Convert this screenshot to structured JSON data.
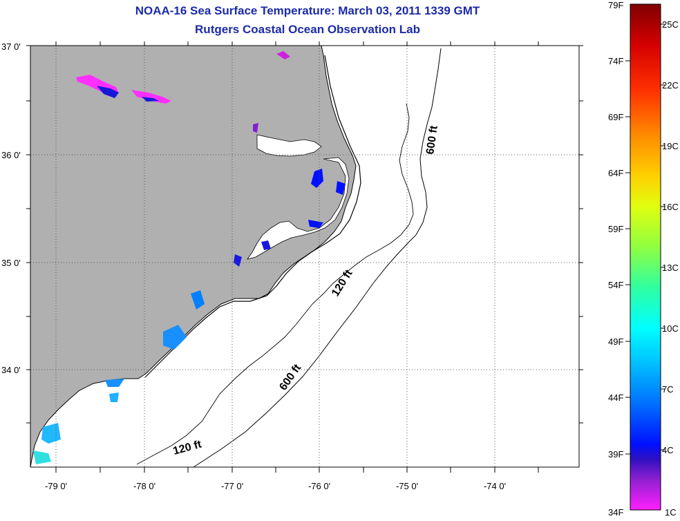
{
  "title_line1": "NOAA-16 Sea Surface Temperature:  March 03, 2011 1339 GMT",
  "title_line2": "Rutgers Coastal Ocean Observation Lab",
  "map": {
    "land_color": "#b0b0b0",
    "water_color": "#ffffff",
    "coastline_color": "#000000",
    "lat_labels": [
      "37 0'",
      "36 0'",
      "35 0'",
      "34 0'"
    ],
    "lon_labels": [
      "-79 0'",
      "-78 0'",
      "-77 0'",
      "-76 0'",
      "-75 0'",
      "-74 0'"
    ],
    "contours": [
      {
        "name": "120 ft shelf isobath",
        "label": "120 ft"
      },
      {
        "name": "600 ft shelf-break isobath",
        "label": "600 ft"
      }
    ]
  },
  "colorbar": {
    "f_labels": [
      "79F",
      "74F",
      "69F",
      "64F",
      "59F",
      "54F",
      "49F",
      "44F",
      "39F",
      "34F"
    ],
    "c_labels": [
      "25C",
      "22C",
      "19C",
      "16C",
      "13C",
      "10C",
      "7C",
      "4C",
      "1C"
    ],
    "colors_top_to_bottom": [
      "#7f0000",
      "#d40000",
      "#ff3000",
      "#ff8c00",
      "#ffd000",
      "#e0ff10",
      "#90ff40",
      "#30ffa0",
      "#00ffff",
      "#00c0ff",
      "#0070ff",
      "#0010ff",
      "#3010c0",
      "#9020d0",
      "#ff20ff"
    ]
  }
}
